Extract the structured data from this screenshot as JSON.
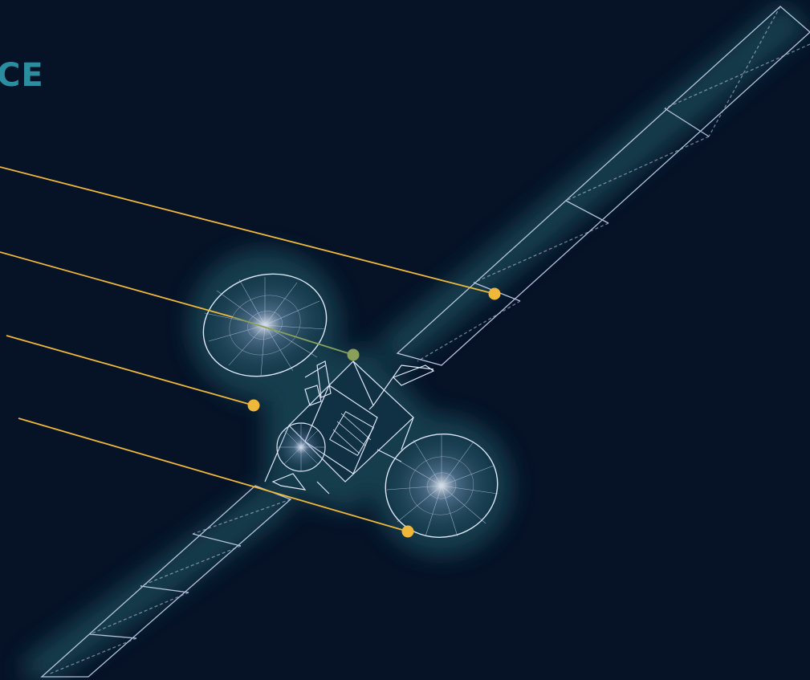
{
  "title_fragment": "CE",
  "colors": {
    "background": "#061226",
    "glow": "#12404f",
    "wireframe": "#c9d4f0",
    "leader_line": "#f0b83a",
    "leader_line_muted": "#8aa05a",
    "title": "#2b8ea0"
  },
  "callouts": [
    {
      "name": "callout-solar-array-top",
      "muted": false
    },
    {
      "name": "callout-bus-top",
      "muted": true
    },
    {
      "name": "callout-antenna-left",
      "muted": false
    },
    {
      "name": "callout-antenna-right",
      "muted": false
    }
  ]
}
